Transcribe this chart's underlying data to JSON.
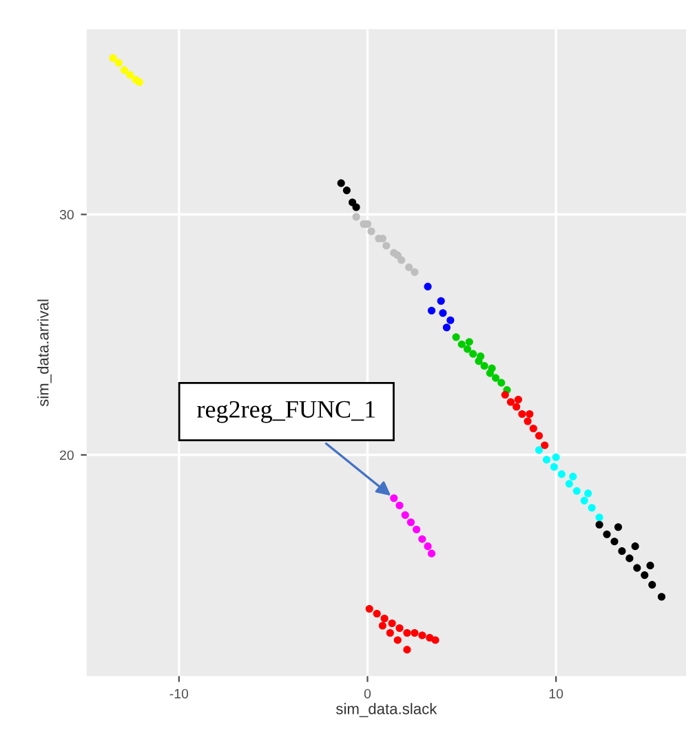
{
  "chart_data": {
    "type": "scatter",
    "xlabel": "sim_data.slack",
    "ylabel": "sim_data.arrival",
    "xlim": [
      -14.9,
      16.9
    ],
    "ylim": [
      10.8,
      37.7
    ],
    "xticks": [
      -10,
      0,
      10
    ],
    "yticks": [
      20,
      30
    ],
    "grid": true,
    "marker": "circle",
    "series": [
      {
        "color": "#ffff00",
        "x": [
          -13.5,
          -13.2,
          -12.9,
          -12.6,
          -12.3,
          -12.1
        ],
        "values": [
          36.5,
          36.3,
          36.0,
          35.8,
          35.6,
          35.5
        ]
      },
      {
        "color": "#bebebe",
        "x": [
          -0.6,
          -0.2,
          0.2,
          0.6,
          1.0,
          1.4,
          1.8,
          2.2,
          2.5,
          0.0,
          0.8,
          1.6
        ],
        "values": [
          29.9,
          29.6,
          29.3,
          29.0,
          28.7,
          28.4,
          28.1,
          27.8,
          27.6,
          29.6,
          29.0,
          28.3
        ]
      },
      {
        "color": "#000000",
        "x": [
          -1.4,
          -1.1,
          -0.8,
          -0.6
        ],
        "values": [
          31.3,
          31.0,
          30.5,
          30.3
        ]
      },
      {
        "color": "#0000ff",
        "x": [
          3.2,
          3.9,
          3.4,
          4.0,
          4.4,
          4.2
        ],
        "values": [
          27.0,
          26.4,
          26.0,
          25.9,
          25.6,
          25.3
        ]
      },
      {
        "color": "#00cd00",
        "x": [
          4.7,
          5.0,
          5.3,
          5.6,
          5.9,
          6.2,
          6.5,
          6.8,
          7.1,
          7.4,
          5.4,
          6.0,
          6.6
        ],
        "values": [
          24.9,
          24.6,
          24.4,
          24.2,
          23.9,
          23.7,
          23.4,
          23.2,
          23.0,
          22.7,
          24.7,
          24.1,
          23.6
        ]
      },
      {
        "color": "#ff0000",
        "x": [
          7.3,
          7.6,
          7.9,
          8.2,
          8.5,
          8.8,
          9.1,
          9.4,
          8.0,
          8.6
        ],
        "values": [
          22.5,
          22.2,
          22.0,
          21.7,
          21.4,
          21.1,
          20.8,
          20.4,
          22.3,
          21.7
        ]
      },
      {
        "color": "#00ffff",
        "x": [
          9.1,
          9.5,
          9.9,
          10.3,
          10.7,
          11.1,
          11.5,
          11.9,
          12.3,
          10.0,
          10.9,
          11.7
        ],
        "values": [
          20.2,
          19.8,
          19.5,
          19.2,
          18.8,
          18.5,
          18.1,
          17.8,
          17.4,
          19.9,
          19.1,
          18.4
        ]
      },
      {
        "color": "#000000",
        "x": [
          12.3,
          12.7,
          13.1,
          13.5,
          13.9,
          14.3,
          14.7,
          15.1,
          15.6,
          13.3,
          14.2,
          15.0
        ],
        "values": [
          17.1,
          16.7,
          16.4,
          16.0,
          15.7,
          15.3,
          15.0,
          14.6,
          14.1,
          17.0,
          16.2,
          15.4
        ]
      },
      {
        "color": "#ff00ff",
        "x": [
          1.4,
          1.7,
          2.0,
          2.3,
          2.6,
          2.9,
          3.2,
          3.4
        ],
        "values": [
          18.2,
          17.9,
          17.5,
          17.2,
          16.9,
          16.5,
          16.2,
          15.9
        ]
      },
      {
        "color": "#ff0000",
        "x": [
          0.1,
          0.5,
          0.9,
          1.3,
          1.7,
          2.1,
          2.5,
          2.9,
          3.3,
          3.6,
          1.2,
          2.1,
          0.8,
          1.6
        ],
        "values": [
          13.6,
          13.4,
          13.2,
          13.0,
          12.8,
          12.6,
          12.6,
          12.5,
          12.4,
          12.3,
          12.6,
          11.9,
          12.9,
          12.3
        ]
      }
    ],
    "annotations": [
      {
        "text": "reg2reg_FUNC_1",
        "x": 1.4,
        "y": 18.2
      }
    ]
  }
}
